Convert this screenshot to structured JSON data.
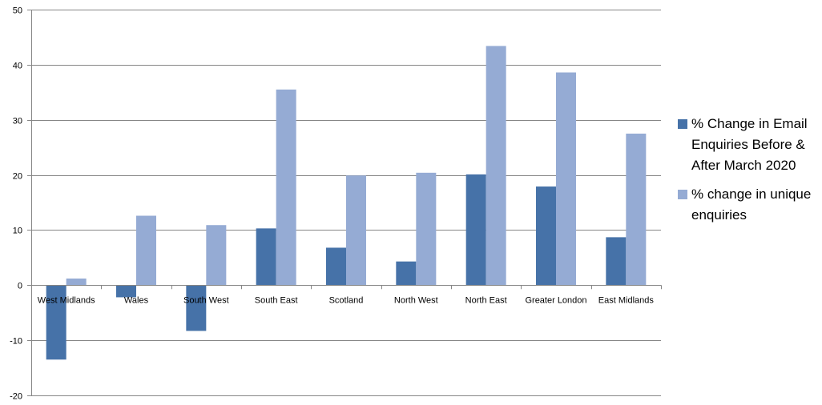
{
  "chart_data": {
    "type": "bar",
    "title": "",
    "xlabel": "",
    "ylabel": "",
    "ylim": [
      -20,
      50
    ],
    "yticks": [
      -20,
      -10,
      0,
      10,
      20,
      30,
      40,
      50
    ],
    "grid": true,
    "legend_position": "right",
    "categories": [
      "West Midlands",
      "Wales",
      "South West",
      "South East",
      "Scotland",
      "North West",
      "North East",
      "Greater London",
      "East Midlands"
    ],
    "series": [
      {
        "name": "% Change in Email Enquiries Before & After March 2020",
        "color": "#4672a8",
        "values": [
          -13.5,
          -2.2,
          -8.3,
          10.3,
          6.8,
          4.3,
          20.1,
          17.9,
          8.7
        ]
      },
      {
        "name": "% change in unique enquiries",
        "color": "#95abd4",
        "values": [
          1.2,
          12.6,
          10.9,
          35.5,
          19.9,
          20.4,
          43.4,
          38.6,
          27.5
        ]
      }
    ]
  }
}
